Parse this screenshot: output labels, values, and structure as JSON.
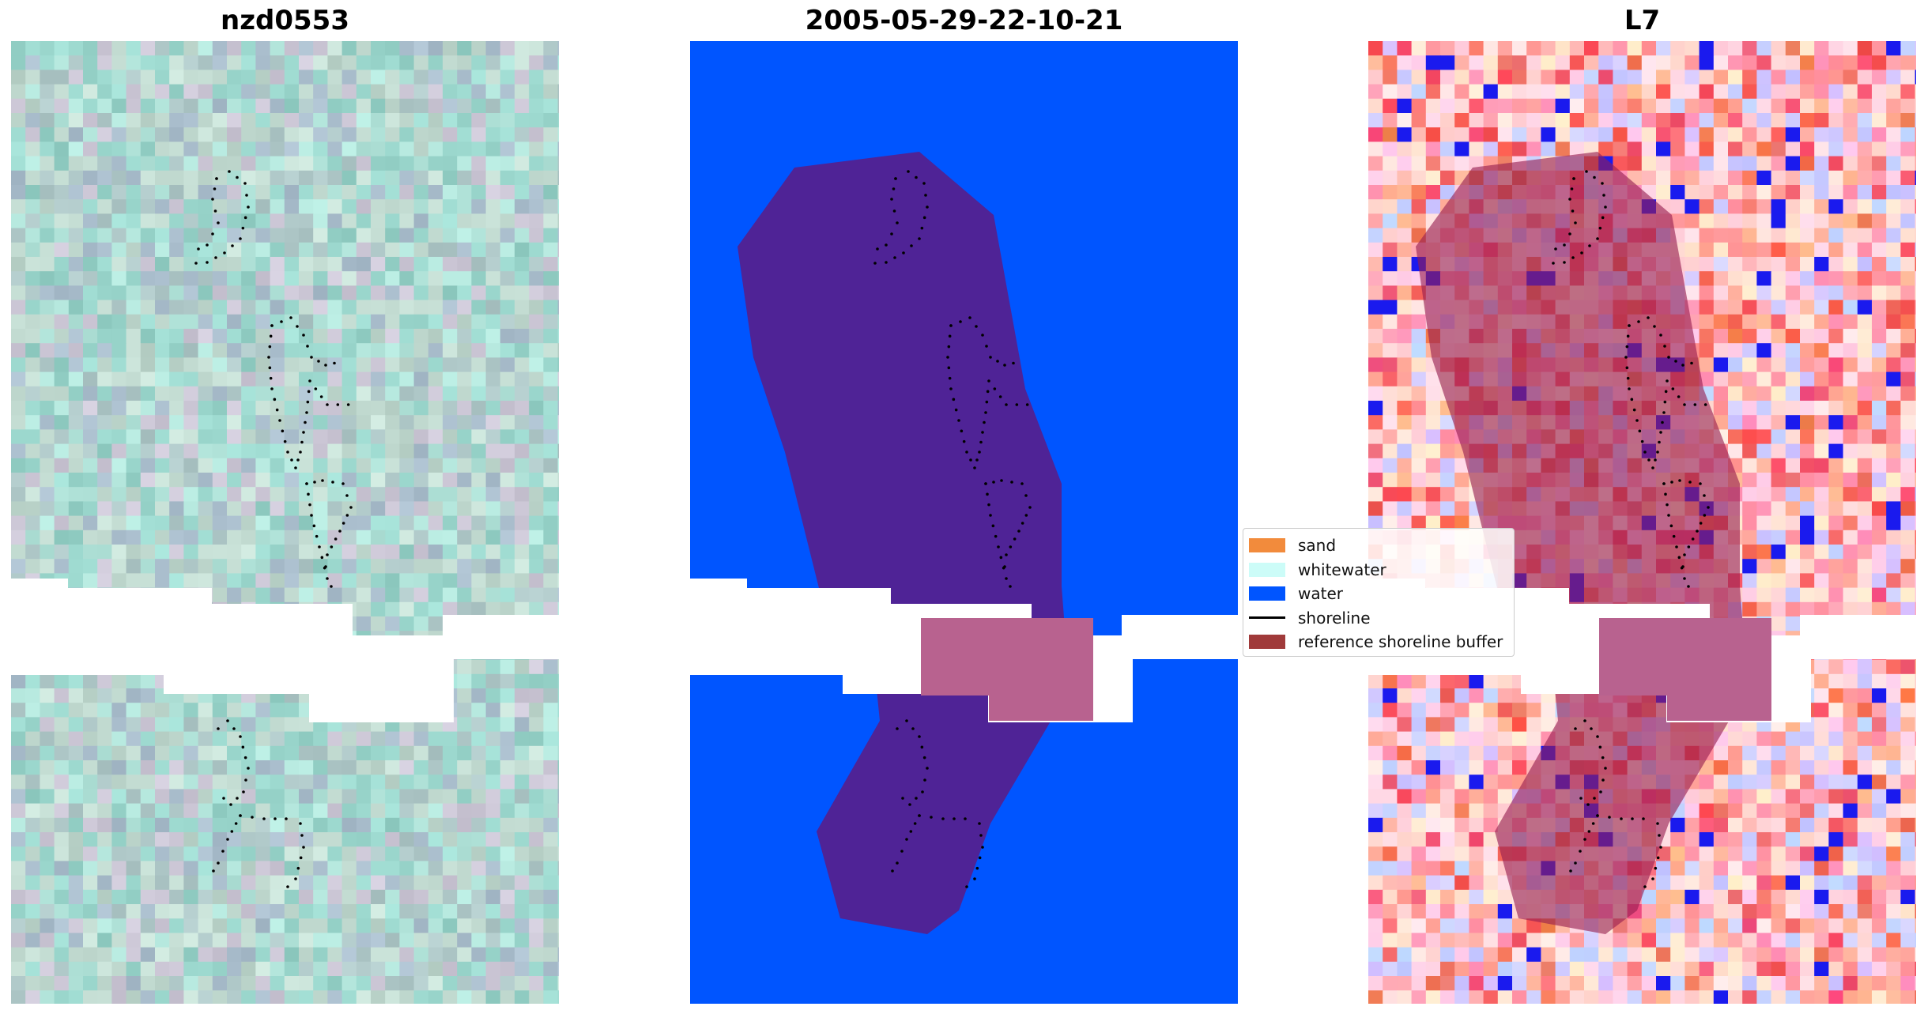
{
  "panels": [
    {
      "title": "nzd0553"
    },
    {
      "title": "2005-05-29-22-10-21"
    },
    {
      "title": "L7"
    }
  ],
  "legend": {
    "items": [
      {
        "label": "sand",
        "color": "#f28b3c",
        "kind": "patch"
      },
      {
        "label": "whitewater",
        "color": "#ccfcf8",
        "kind": "patch"
      },
      {
        "label": "water",
        "color": "#0055ff",
        "kind": "patch"
      },
      {
        "label": "shoreline",
        "color": "#000000",
        "kind": "line"
      },
      {
        "label": "reference shoreline buffer",
        "color": "#a03a3a",
        "kind": "patch"
      }
    ]
  }
}
